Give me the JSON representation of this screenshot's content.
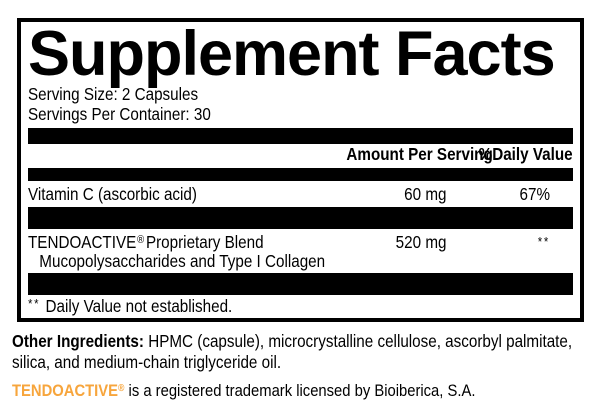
{
  "colors": {
    "accent_orange": "#F7A53C",
    "label_text": "#000000",
    "background": "#FFFFFF"
  },
  "supplement_facts": {
    "title": "Supplement Facts",
    "serving_size": "Serving Size: 2 Capsules",
    "servings_per_container": "Servings Per Container: 30",
    "header": {
      "amount": "Amount Per Serving",
      "daily_value": "%Daily Value"
    },
    "rows": [
      {
        "name": "Vitamin C (ascorbic acid)",
        "amount": "60 mg",
        "daily_value": "67%"
      },
      {
        "brand": "TENDOACTIVE",
        "reg_mark": "®",
        "name": "Proprietary Blend",
        "amount": "520 mg",
        "daily_value": "**",
        "sub_ingredients": "Mucopolysaccharides and Type I Collagen"
      }
    ],
    "footnote": {
      "marker": "**",
      "text": "Daily Value not established."
    }
  },
  "other_ingredients": {
    "label": "Other Ingredients:",
    "text": "HPMC (capsule), microcrystalline cellulose, ascorbyl palmitate, silica, and medium-chain triglyceride oil."
  },
  "trademark_notice": {
    "brand": "TENDOACTIVE",
    "reg_mark": "®",
    "text": "is a registered trademark licensed by Bioiberica, S.A."
  }
}
